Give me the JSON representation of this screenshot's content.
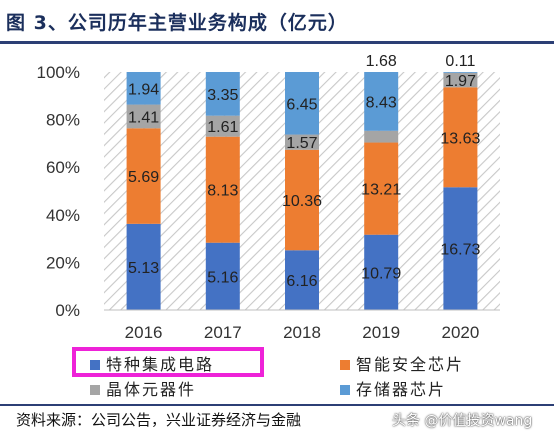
{
  "title": "图 3、公司历年主营业务构成（亿元）",
  "footer": {
    "source": "资料来源：公司公告，兴业证券经济与金融",
    "watermark": "头条 @价值投资wang"
  },
  "colors": {
    "series_1": "#4472c4",
    "series_2": "#ed7d31",
    "series_3": "#a5a5a5",
    "series_4": "#5b9bd5",
    "highlight_box": "#ee22d8",
    "title": "#1b2f5c"
  },
  "chart_data": {
    "type": "bar",
    "stacked": "percent",
    "categories": [
      "2016",
      "2017",
      "2018",
      "2019",
      "2020"
    ],
    "series": [
      {
        "name": "特种集成电路",
        "values": [
          5.13,
          5.16,
          6.16,
          10.79,
          16.73
        ]
      },
      {
        "name": "智能安全芯片",
        "values": [
          5.69,
          8.13,
          10.36,
          13.21,
          13.63
        ]
      },
      {
        "name": "晶体元器件",
        "values": [
          1.41,
          1.61,
          1.57,
          1.68,
          1.97
        ]
      },
      {
        "name": "存储器芯片",
        "values": [
          1.94,
          3.35,
          6.45,
          8.43,
          0.11
        ]
      }
    ],
    "ylim": [
      0,
      100
    ],
    "yticks": [
      "0%",
      "20%",
      "40%",
      "60%",
      "80%",
      "100%"
    ],
    "legend": "bottom"
  }
}
